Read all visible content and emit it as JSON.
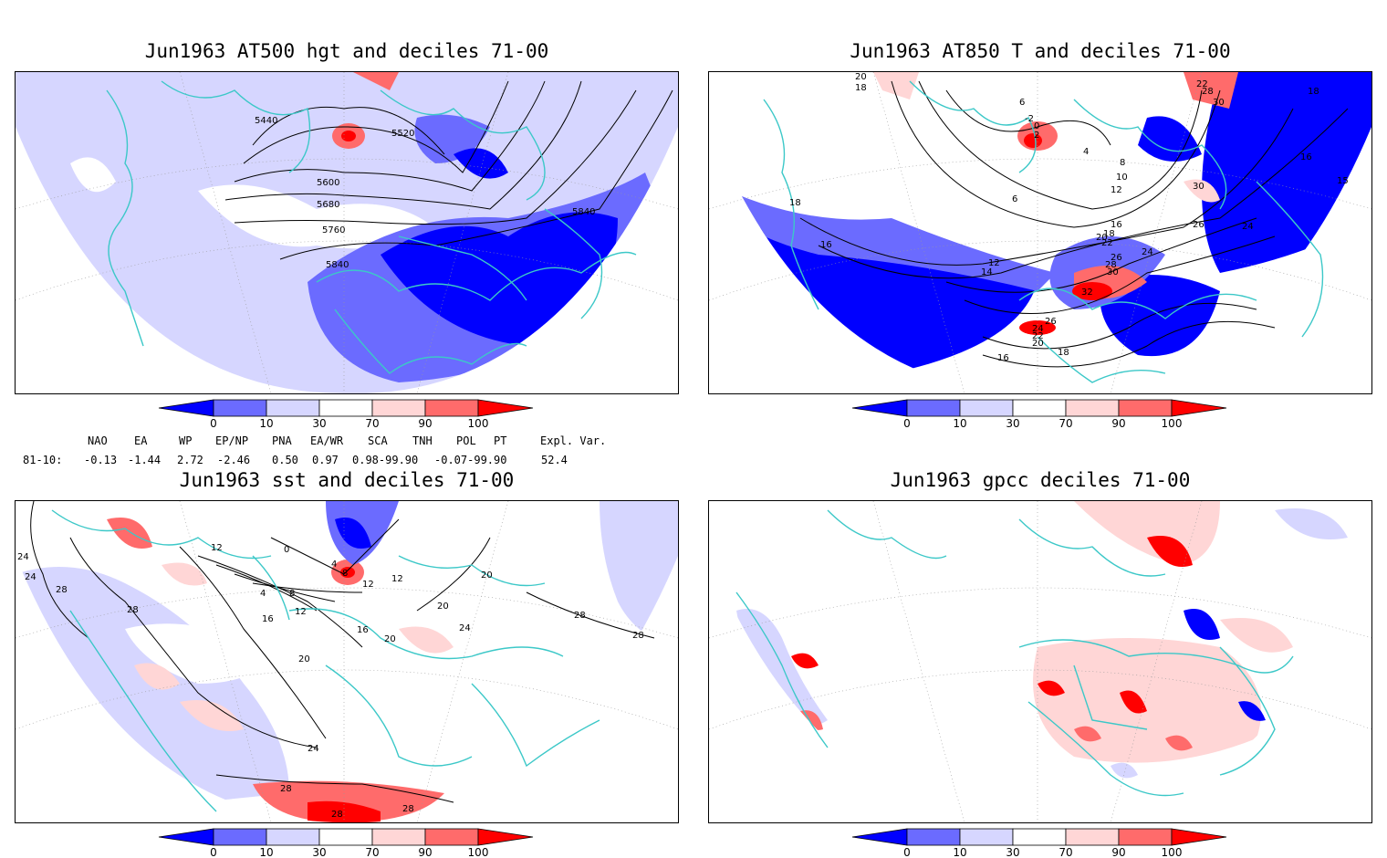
{
  "panels": [
    {
      "title": "Jun1963 AT500 hgt and deciles 71-00",
      "contour_labels": [
        "5440",
        "5520",
        "5600",
        "5680",
        "5760",
        "5840",
        "5840"
      ]
    },
    {
      "title": "Jun1963 AT850 T and deciles 71-00",
      "contour_labels": [
        "20",
        "18",
        "6",
        "-2",
        "0",
        "2",
        "4",
        "8",
        "10",
        "12",
        "16",
        "18",
        "20",
        "22",
        "24",
        "26",
        "28",
        "30",
        "32",
        "26",
        "24",
        "22",
        "20",
        "18",
        "14",
        "12",
        "16",
        "16",
        "18",
        "28",
        "30",
        "22",
        "18",
        "16",
        "15",
        "24",
        "26",
        "30",
        "6"
      ]
    },
    {
      "title": "Jun1963 sst and deciles 71-00",
      "contour_labels": [
        "24",
        "24",
        "28",
        "28",
        "12",
        "0",
        "4",
        "8",
        "12",
        "16",
        "20",
        "12",
        "16",
        "24",
        "28",
        "28",
        "20",
        "20",
        "24",
        "28",
        "28",
        "28",
        "4",
        "8",
        "12",
        "20"
      ]
    },
    {
      "title": "Jun1963 gpcc deciles 71-00",
      "contour_labels": []
    }
  ],
  "colorbar": {
    "ticks": [
      "0",
      "10",
      "30",
      "70",
      "90",
      "100"
    ],
    "colors": [
      "#0000ff",
      "#6b6bff",
      "#d6d6ff",
      "#ffffff",
      "#ffd6d6",
      "#ff6b6b",
      "#ff0000"
    ]
  },
  "teleconnections": {
    "header": [
      "NAO",
      "EA",
      "WP",
      "EP/NP",
      "PNA",
      "EA/WR",
      "SCA",
      "TNH",
      "POL",
      "PT",
      "Expl. Var."
    ],
    "row_label": "81-10:",
    "values": [
      "-0.13",
      "-1.44",
      "2.72",
      "-2.46",
      "0.50",
      "0.97",
      "0.98-99.90",
      "-0.07-99.90",
      "52.4"
    ]
  },
  "map_colors": {
    "coast": "#3cc8c8",
    "contour": "#000000",
    "grid": "#9a9a9a"
  }
}
